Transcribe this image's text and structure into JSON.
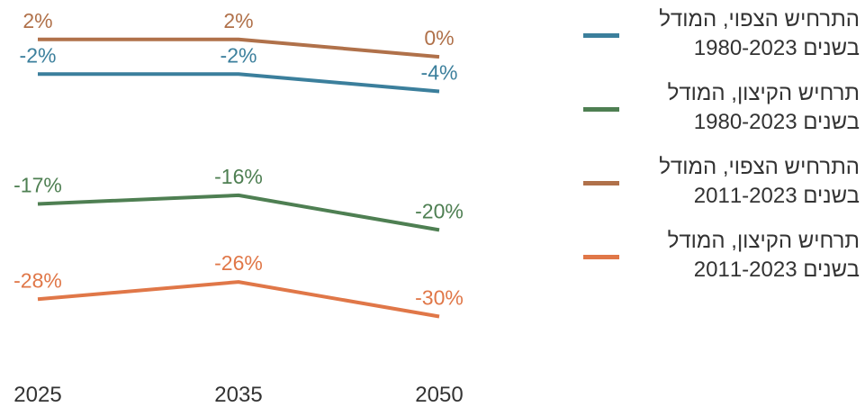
{
  "chart_data": {
    "type": "line",
    "title": "",
    "xlabel": "",
    "ylabel": "",
    "x": [
      "2025",
      "2035",
      "2050"
    ],
    "ylim": [
      -34,
      5
    ],
    "grid": false,
    "legend_position": "right",
    "series": [
      {
        "name_lines": [
          "התרחיש הצפוי, המודל",
          "בשנים 1980-2023"
        ],
        "color": "#3b7f9c",
        "values": [
          -2,
          -2,
          -4
        ],
        "labels": [
          "-2%",
          "-2%",
          "-4%"
        ]
      },
      {
        "name_lines": [
          "תרחיש הקיצון, המודל",
          "בשנים 1980-2023"
        ],
        "color": "#4e7f52",
        "values": [
          -17,
          -16,
          -20
        ],
        "labels": [
          "-17%",
          "-16%",
          "-20%"
        ]
      },
      {
        "name_lines": [
          "התרחיש הצפוי, המודל",
          "בשנים 2011-2023"
        ],
        "color": "#b0714a",
        "values": [
          2,
          2,
          0
        ],
        "labels": [
          "2%",
          "2%",
          "0%"
        ]
      },
      {
        "name_lines": [
          "תרחיש הקיצון, המודל",
          "בשנים 2011-2023"
        ],
        "color": "#e07748",
        "values": [
          -28,
          -26,
          -30
        ],
        "labels": [
          "-28%",
          "-26%",
          "-30%"
        ]
      }
    ]
  }
}
